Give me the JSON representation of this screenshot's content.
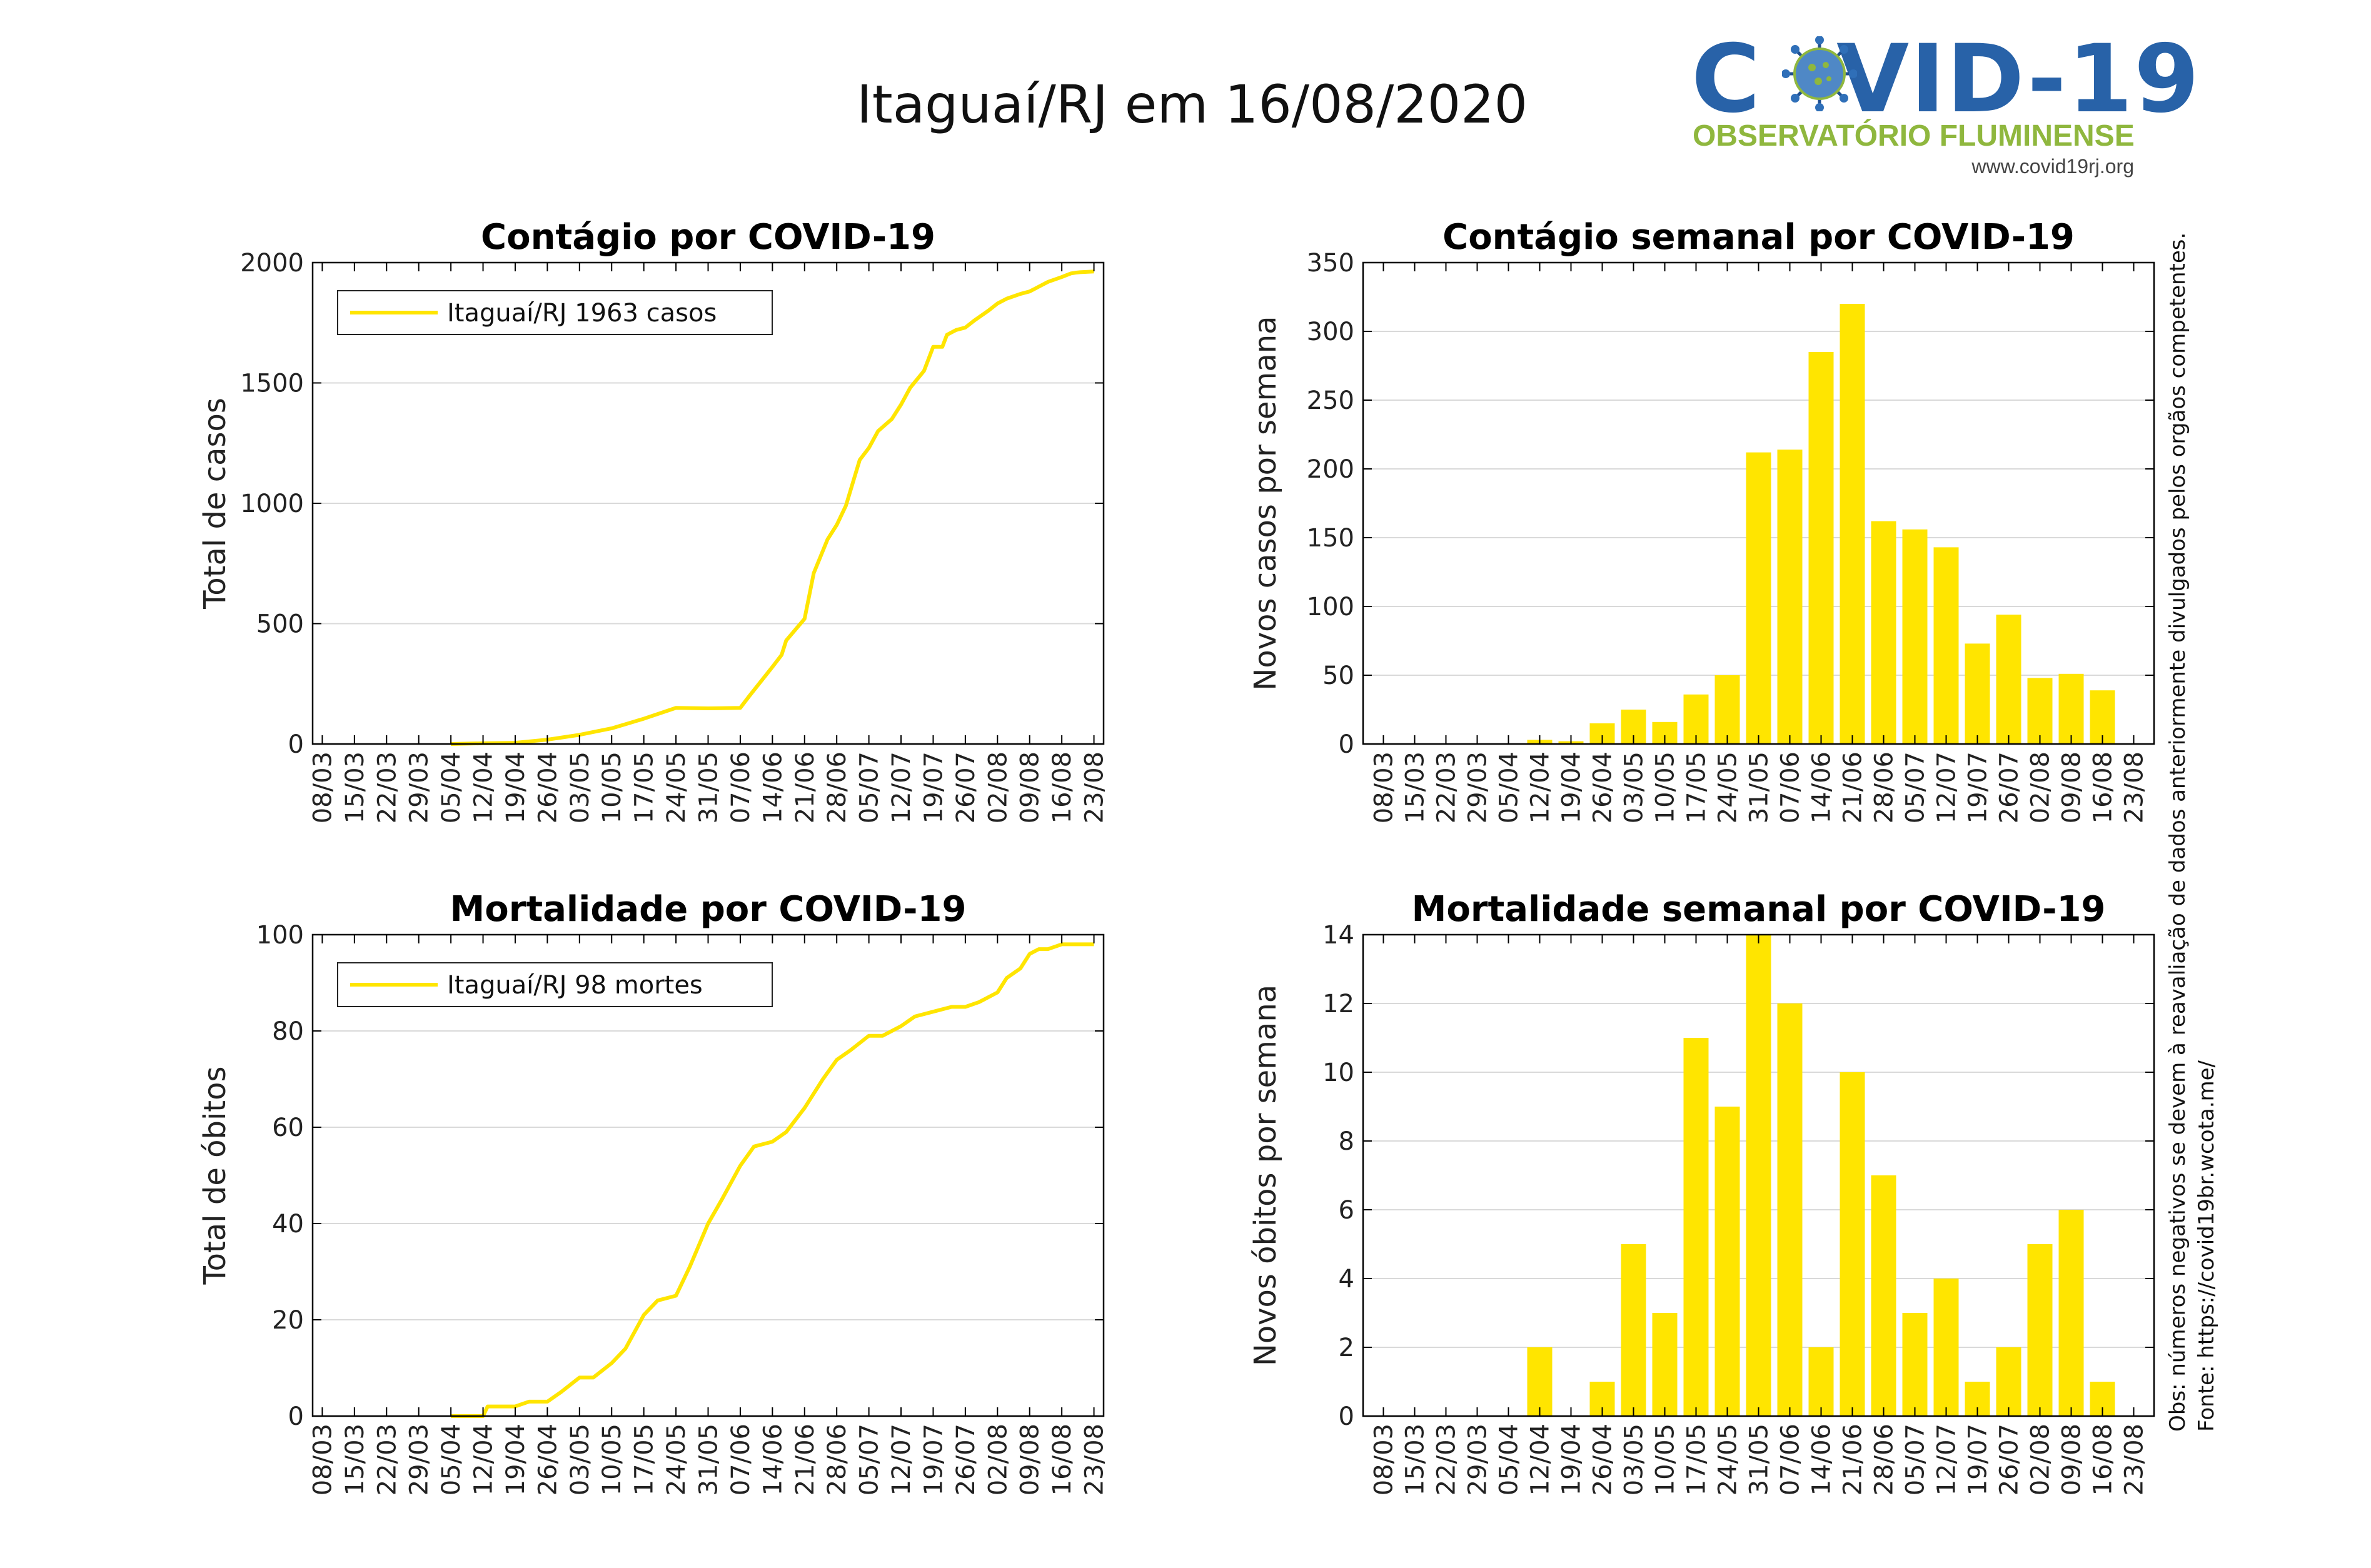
{
  "header": {
    "title": "Itaguaí/RJ em 16/08/2020"
  },
  "logo": {
    "part1": "C",
    "part2": "VID-19",
    "subtitle": "OBSERVATÓRIO FLUMINENSE",
    "url": "www.covid19rj.org",
    "colors": {
      "blue": "#2862a8",
      "green": "#8fb73e"
    },
    "icon": "virus-icon"
  },
  "notes": {
    "obs": "Obs: números negativos se devem à reavaliação de dados anteriormente divulgados pelos orgãos competentes.",
    "source": "Fonte: https://covid19br.wcota.me/"
  },
  "colors": {
    "series": "#FFE500",
    "grid": "#d9d9d9",
    "axis": "#000000"
  },
  "chart_data": [
    {
      "id": "cases-total",
      "type": "line",
      "title": "Contágio por COVID-19",
      "ylabel": "Total de casos",
      "xlabel": "",
      "ylim": [
        0,
        2000
      ],
      "yticks": [
        0,
        500,
        1000,
        1500,
        2000
      ],
      "xlim": [
        0,
        168
      ],
      "xtick_labels": [
        "08/03",
        "15/03",
        "22/03",
        "29/03",
        "05/04",
        "12/04",
        "19/04",
        "26/04",
        "03/05",
        "10/05",
        "17/05",
        "24/05",
        "31/05",
        "07/06",
        "14/06",
        "21/06",
        "28/06",
        "05/07",
        "12/07",
        "19/07",
        "26/07",
        "02/08",
        "09/08",
        "16/08",
        "23/08"
      ],
      "legend": {
        "label": "Itaguaí/RJ  1963 casos",
        "position": "top-left"
      },
      "grid": true,
      "x": [
        28,
        35,
        42,
        49,
        56,
        63,
        70,
        77,
        84,
        91,
        93,
        98,
        100,
        101,
        105,
        107,
        110,
        112,
        114,
        117,
        119,
        121,
        124,
        126,
        128,
        131,
        133,
        135,
        136,
        138,
        140,
        142,
        145,
        147,
        149,
        152,
        154,
        156,
        158,
        161,
        163,
        164,
        165,
        168
      ],
      "values": [
        0,
        3,
        5,
        18,
        38,
        65,
        105,
        150,
        148,
        150,
        200,
        320,
        370,
        430,
        520,
        710,
        850,
        910,
        990,
        1180,
        1230,
        1300,
        1350,
        1410,
        1480,
        1550,
        1650,
        1650,
        1700,
        1720,
        1730,
        1760,
        1800,
        1830,
        1850,
        1870,
        1880,
        1900,
        1920,
        1940,
        1955,
        1958,
        1960,
        1963
      ]
    },
    {
      "id": "cases-weekly",
      "type": "bar",
      "title": "Contágio semanal por COVID-19",
      "ylabel": "Novos casos por semana",
      "xlabel": "",
      "ylim": [
        0,
        350
      ],
      "yticks": [
        0,
        50,
        100,
        150,
        200,
        250,
        300,
        350
      ],
      "categories": [
        "08/03",
        "15/03",
        "22/03",
        "29/03",
        "05/04",
        "12/04",
        "19/04",
        "26/04",
        "03/05",
        "10/05",
        "17/05",
        "24/05",
        "31/05",
        "07/06",
        "14/06",
        "21/06",
        "28/06",
        "05/07",
        "12/07",
        "19/07",
        "26/07",
        "02/08",
        "09/08",
        "16/08",
        "23/08"
      ],
      "values": [
        0,
        0,
        0,
        0,
        0,
        3,
        2,
        15,
        25,
        16,
        36,
        50,
        212,
        214,
        285,
        320,
        162,
        156,
        143,
        73,
        94,
        48,
        51,
        39,
        null
      ],
      "grid": true
    },
    {
      "id": "deaths-total",
      "type": "line",
      "title": "Mortalidade por COVID-19",
      "ylabel": "Total de óbitos",
      "xlabel": "",
      "ylim": [
        0,
        100
      ],
      "yticks": [
        0,
        20,
        40,
        60,
        80,
        100
      ],
      "xlim": [
        0,
        168
      ],
      "xtick_labels": [
        "08/03",
        "15/03",
        "22/03",
        "29/03",
        "05/04",
        "12/04",
        "19/04",
        "26/04",
        "03/05",
        "10/05",
        "17/05",
        "24/05",
        "31/05",
        "07/06",
        "14/06",
        "21/06",
        "28/06",
        "05/07",
        "12/07",
        "19/07",
        "26/07",
        "02/08",
        "09/08",
        "16/08",
        "23/08"
      ],
      "legend": {
        "label": "Itaguaí/RJ  98 mortes",
        "position": "top-left"
      },
      "grid": true,
      "x": [
        28,
        35,
        36,
        42,
        45,
        49,
        52,
        56,
        59,
        63,
        66,
        70,
        73,
        77,
        80,
        84,
        87,
        91,
        94,
        98,
        101,
        105,
        109,
        112,
        115,
        119,
        122,
        126,
        129,
        133,
        137,
        140,
        143,
        147,
        149,
        152,
        154,
        156,
        158,
        161,
        163,
        168
      ],
      "values": [
        0,
        0,
        2,
        2,
        3,
        3,
        5,
        8,
        8,
        11,
        14,
        21,
        24,
        25,
        31,
        40,
        45,
        52,
        56,
        57,
        59,
        64,
        70,
        74,
        76,
        79,
        79,
        81,
        83,
        84,
        85,
        85,
        86,
        88,
        91,
        93,
        96,
        97,
        97,
        98,
        98,
        98
      ]
    },
    {
      "id": "deaths-weekly",
      "type": "bar",
      "title": "Mortalidade semanal por COVID-19",
      "ylabel": "Novos óbitos por semana",
      "xlabel": "",
      "ylim": [
        0,
        14
      ],
      "yticks": [
        0,
        2,
        4,
        6,
        8,
        10,
        12,
        14
      ],
      "categories": [
        "08/03",
        "15/03",
        "22/03",
        "29/03",
        "05/04",
        "12/04",
        "19/04",
        "26/04",
        "03/05",
        "10/05",
        "17/05",
        "24/05",
        "31/05",
        "07/06",
        "14/06",
        "21/06",
        "28/06",
        "05/07",
        "12/07",
        "19/07",
        "26/07",
        "02/08",
        "09/08",
        "16/08",
        "23/08"
      ],
      "values": [
        0,
        0,
        0,
        0,
        0,
        2,
        0,
        1,
        5,
        3,
        11,
        9,
        14,
        12,
        2,
        10,
        7,
        3,
        4,
        1,
        2,
        5,
        6,
        1,
        null
      ],
      "grid": true
    }
  ]
}
